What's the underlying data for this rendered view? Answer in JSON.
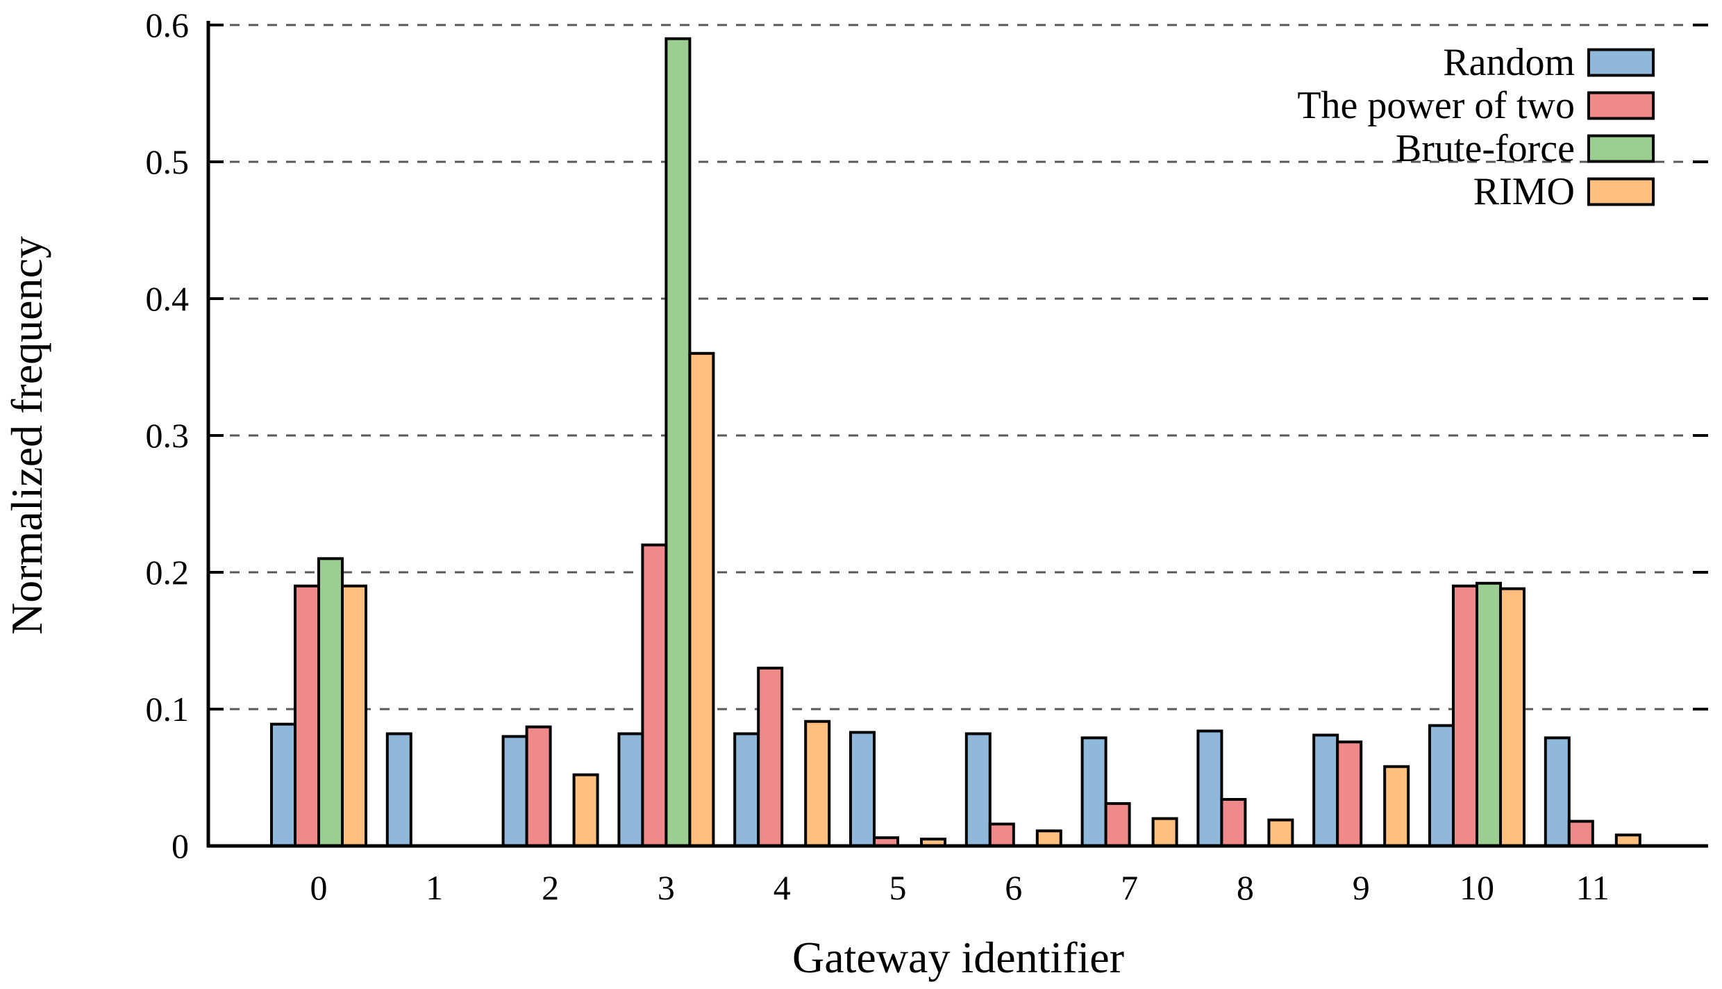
{
  "chart_data": {
    "type": "bar",
    "title": "",
    "xlabel": "Gateway identifier",
    "ylabel": "Normalized frequency",
    "categories": [
      "0",
      "1",
      "2",
      "3",
      "4",
      "5",
      "6",
      "7",
      "8",
      "9",
      "10",
      "11"
    ],
    "y_ticks": [
      "0",
      "0.1",
      "0.2",
      "0.3",
      "0.4",
      "0.5",
      "0.6"
    ],
    "y_tick_values": [
      0,
      0.1,
      0.2,
      0.3,
      0.4,
      0.5,
      0.6
    ],
    "ylim": [
      0,
      0.6
    ],
    "grid": "horizontal-dashed",
    "legend_position": "top-right",
    "background_color": "#ffffff",
    "gridline_color": "#595959",
    "bar_outline_color": "#000000",
    "series": [
      {
        "name": "Random",
        "color": "#90B8DA",
        "values": [
          0.089,
          0.082,
          0.08,
          0.082,
          0.082,
          0.083,
          0.082,
          0.079,
          0.084,
          0.081,
          0.088,
          0.079
        ]
      },
      {
        "name": "The power of two",
        "color": "#F08A8A",
        "values": [
          0.19,
          0,
          0.087,
          0.22,
          0.13,
          0.006,
          0.016,
          0.031,
          0.034,
          0.076,
          0.19,
          0.018
        ]
      },
      {
        "name": "Brute-force",
        "color": "#9BCE91",
        "values": [
          0.21,
          0,
          0,
          0.59,
          0,
          0,
          0,
          0,
          0,
          0,
          0.192,
          0
        ]
      },
      {
        "name": "RIMO",
        "color": "#FFBF7E",
        "values": [
          0.19,
          0,
          0.052,
          0.36,
          0.091,
          0.005,
          0.011,
          0.02,
          0.019,
          0.058,
          0.188,
          0.008
        ]
      }
    ]
  }
}
